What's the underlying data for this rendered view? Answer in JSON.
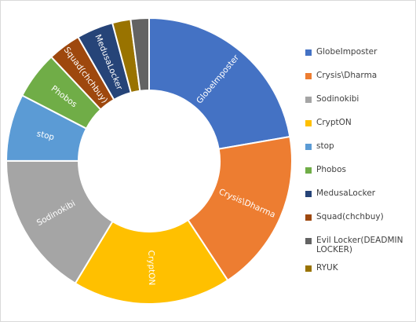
{
  "chart_data": {
    "type": "pie",
    "variant": "doughnut",
    "title": "",
    "categories": [
      "GlobeImposter",
      "Crysis\\Dharma",
      "CryptON",
      "Sodinokibi",
      "stop",
      "Phobos",
      "Squad(chchbuy)",
      "MedusaLocker",
      "RYUK",
      "Evil Locker(DEADMIN LOCKER)"
    ],
    "values": [
      21.5,
      17.8,
      17.3,
      15.8,
      7.3,
      5.2,
      3.6,
      4.0,
      2.0,
      2.0
    ],
    "colors": [
      "#4472C4",
      "#ED7D31",
      "#FFC000",
      "#A5A5A5",
      "#5B9BD5",
      "#70AD47",
      "#9E480E",
      "#264478",
      "#997300",
      "#636363"
    ],
    "slice_labels_visible": true,
    "legend": {
      "position": "right",
      "entries": [
        "GlobeImposter",
        "Crysis\\Dharma",
        "Sodinokibi",
        "CryptON",
        "stop",
        "Phobos",
        "MedusaLocker",
        "Squad(chchbuy)",
        "Evil Locker(DEADMIN LOCKER)",
        "RYUK"
      ],
      "colors": [
        "#4472C4",
        "#ED7D31",
        "#A5A5A5",
        "#FFC000",
        "#5B9BD5",
        "#70AD47",
        "#264478",
        "#9E480E",
        "#636363",
        "#997300"
      ]
    }
  }
}
